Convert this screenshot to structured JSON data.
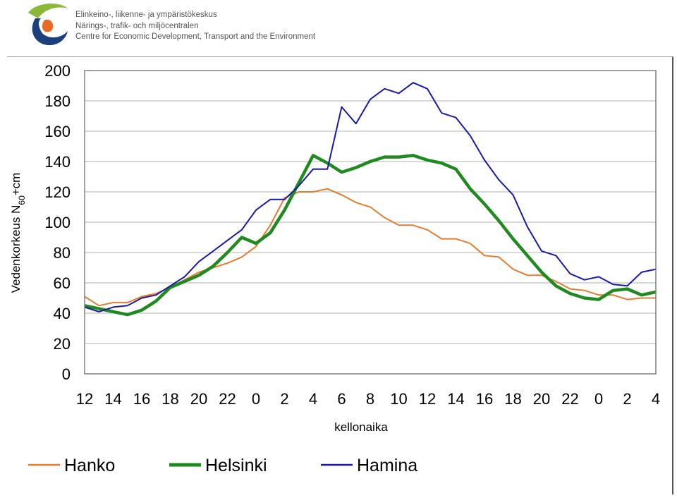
{
  "header": {
    "org_line_1": "Elinkeino-, liikenne- ja ympäristökeskus",
    "org_line_2": "Närings-, trafik- och miljöcentralen",
    "org_line_3": "Centre for Economic Development, Transport and the Environment"
  },
  "colors": {
    "Hanko": "#e57c2f",
    "Helsinki": "#1f8a1f",
    "Hamina": "#1a1aa8",
    "logo_green": "#8cb83a",
    "logo_blue": "#1c3f7e",
    "logo_orange": "#ea6a24"
  },
  "chart_data": {
    "type": "line",
    "title": "",
    "xlabel": "kellonaika",
    "ylabel": "Vedenkorkeus N60+cm",
    "ylabel_parts": {
      "pre": "Vedenkorkeus N",
      "sub": "60",
      "post": "+cm"
    },
    "ylim": [
      0,
      200
    ],
    "y_ticks": [
      0,
      20,
      40,
      60,
      80,
      100,
      120,
      140,
      160,
      180,
      200
    ],
    "grid": true,
    "legend_position": "bottom",
    "x": [
      12,
      13,
      14,
      15,
      16,
      17,
      18,
      19,
      20,
      21,
      22,
      23,
      0,
      1,
      2,
      3,
      4,
      5,
      6,
      7,
      8,
      9,
      10,
      11,
      12,
      13,
      14,
      15,
      16,
      17,
      18,
      19,
      20,
      21,
      22,
      23,
      0,
      1,
      2,
      3,
      4
    ],
    "x_tick_labels": [
      "12",
      "14",
      "16",
      "18",
      "20",
      "22",
      "0",
      "2",
      "4",
      "6",
      "8",
      "10",
      "12",
      "14",
      "16",
      "18",
      "20",
      "22",
      "0",
      "2",
      "4"
    ],
    "series": [
      {
        "name": "Hanko",
        "values": [
          51,
          45,
          47,
          47,
          51,
          53,
          57,
          62,
          67,
          70,
          73,
          77,
          84,
          98,
          116,
          120,
          120,
          122,
          118,
          113,
          110,
          103,
          98,
          98,
          95,
          89,
          89,
          86,
          78,
          77,
          69,
          65,
          65,
          61,
          56,
          55,
          52,
          52,
          49,
          50,
          50
        ]
      },
      {
        "name": "Helsinki",
        "values": [
          45,
          43,
          41,
          39,
          42,
          48,
          57,
          61,
          65,
          71,
          80,
          90,
          86,
          93,
          108,
          126,
          144,
          139,
          133,
          136,
          140,
          143,
          143,
          144,
          141,
          139,
          135,
          122,
          112,
          101,
          89,
          78,
          67,
          58,
          53,
          50,
          49,
          55,
          56,
          52,
          54
        ]
      },
      {
        "name": "Hamina",
        "values": [
          44,
          41,
          44,
          45,
          50,
          52,
          58,
          64,
          74,
          81,
          88,
          95,
          108,
          115,
          115,
          124,
          135,
          135,
          176,
          165,
          181,
          188,
          185,
          192,
          188,
          172,
          169,
          157,
          141,
          128,
          118,
          97,
          81,
          78,
          66,
          62,
          64,
          59,
          58,
          67,
          69
        ]
      }
    ]
  }
}
